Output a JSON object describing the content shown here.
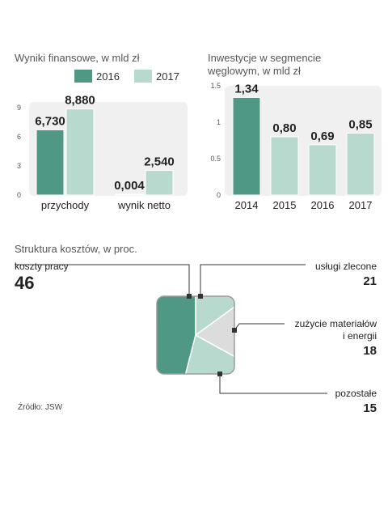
{
  "colors": {
    "c2016": "#4f9886",
    "c2017": "#b8d9cd",
    "pie_dark": "#4f9886",
    "pie_light": "#b8d9cd",
    "pie_grey": "#dcdcdc",
    "panel": "#f0f0f0"
  },
  "chart_data": [
    {
      "type": "bar",
      "title": "Wyniki finansowe, w mld zł",
      "categories": [
        "przychody",
        "wynik netto"
      ],
      "series": [
        {
          "name": "2016",
          "values": [
            6.73,
            0.004
          ],
          "labels": [
            "6,730",
            "0,004"
          ]
        },
        {
          "name": "2017",
          "values": [
            8.88,
            2.54
          ],
          "labels": [
            "8,880",
            "2,540"
          ]
        }
      ],
      "yticks": [
        "0",
        "3",
        "6",
        "9"
      ],
      "ylim": [
        0,
        9.6
      ],
      "legend": "top-right"
    },
    {
      "type": "bar",
      "title_lines": [
        "Inwestycje w segmencie",
        "węglowym, w mld zł"
      ],
      "categories": [
        "2014",
        "2015",
        "2016",
        "2017"
      ],
      "values": [
        1.34,
        0.8,
        0.69,
        0.85
      ],
      "labels": [
        "1,34",
        "0,80",
        "0,69",
        "0,85"
      ],
      "yticks": [
        "0",
        "0.5",
        "1",
        "1.5"
      ],
      "ylim": [
        0,
        1.5
      ]
    },
    {
      "type": "pie",
      "title": "Struktura kosztów, w proc.",
      "slices": [
        {
          "label": "koszty pracy",
          "value": 46
        },
        {
          "label": "usługi zlecone",
          "value": 21
        },
        {
          "label_lines": [
            "zużycie materiałów",
            "i energii"
          ],
          "value": 18
        },
        {
          "label": "pozostałe",
          "value": 15
        }
      ]
    }
  ],
  "source": "Źródło: JSW"
}
